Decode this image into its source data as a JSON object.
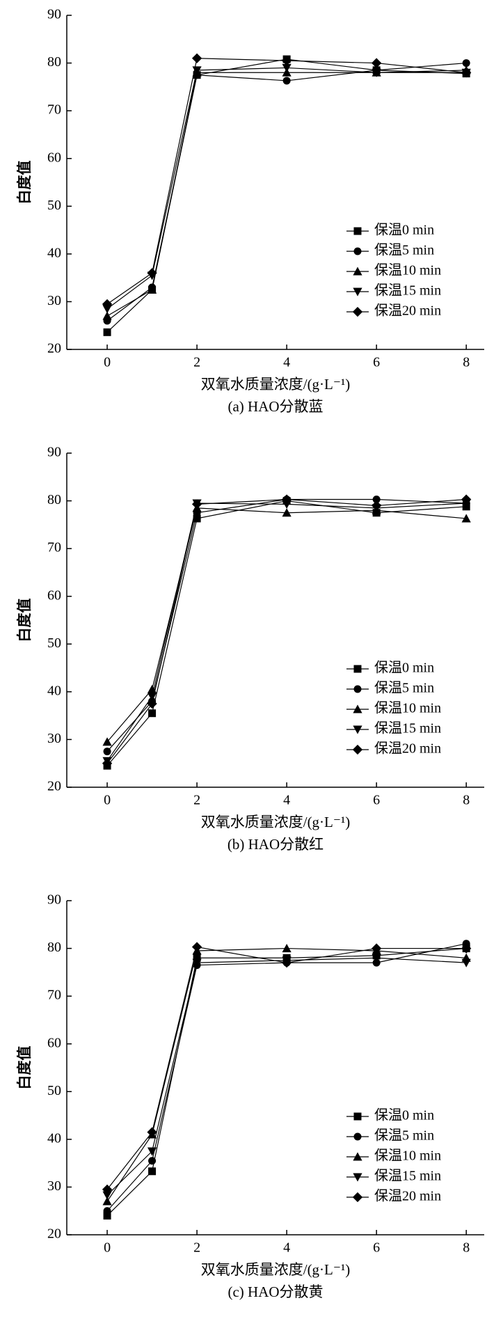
{
  "chart_data": [
    {
      "type": "line",
      "title": "(a) HAO分散蓝",
      "x_label": "双氧水质量浓度/(g·L⁻¹)",
      "y_label": "白度值",
      "x": [
        0,
        1,
        2,
        4,
        6,
        8
      ],
      "xlim": [
        -0.9,
        8.4
      ],
      "xticks": [
        0,
        2,
        4,
        6,
        8
      ],
      "ylim": [
        20,
        90
      ],
      "yticks": [
        20,
        30,
        40,
        50,
        60,
        70,
        80,
        90
      ],
      "legend": "lower right",
      "series": [
        {
          "name": "保温0 min",
          "color": "#000000",
          "marker": "square",
          "values": [
            23.6,
            32.5,
            77.5,
            80.8,
            78.5,
            77.8
          ]
        },
        {
          "name": "保温5 min",
          "color": "#000000",
          "marker": "circle",
          "values": [
            26,
            33,
            77.5,
            76.3,
            78.5,
            80
          ]
        },
        {
          "name": "保温10 min",
          "color": "#000000",
          "marker": "triangle-up",
          "values": [
            27,
            32.5,
            78,
            78,
            78,
            78.5
          ]
        },
        {
          "name": "保温15 min",
          "color": "#000000",
          "marker": "triangle-down",
          "values": [
            28.5,
            35.5,
            78.5,
            79,
            78,
            78
          ]
        },
        {
          "name": "保温20 min",
          "color": "#000000",
          "marker": "diamond",
          "values": [
            29.5,
            36,
            81,
            80.5,
            80,
            78
          ]
        }
      ]
    },
    {
      "type": "line",
      "title": "(b) HAO分散红",
      "x_label": "双氧水质量浓度/(g·L⁻¹)",
      "y_label": "白度值",
      "x": [
        0,
        1,
        2,
        4,
        6,
        8
      ],
      "xlim": [
        -0.9,
        8.4
      ],
      "xticks": [
        0,
        2,
        4,
        6,
        8
      ],
      "ylim": [
        20,
        90
      ],
      "yticks": [
        20,
        30,
        40,
        50,
        60,
        70,
        80,
        90
      ],
      "legend": "lower right",
      "series": [
        {
          "name": "保温0 min",
          "color": "#000000",
          "marker": "square",
          "values": [
            24.5,
            35.5,
            76.3,
            80,
            77.5,
            78.8
          ]
        },
        {
          "name": "保温5 min",
          "color": "#000000",
          "marker": "circle",
          "values": [
            27.5,
            38,
            77.5,
            80.3,
            80.3,
            79.5
          ]
        },
        {
          "name": "保温10 min",
          "color": "#000000",
          "marker": "triangle-up",
          "values": [
            29.5,
            40.5,
            78.5,
            77.5,
            78,
            76.3
          ]
        },
        {
          "name": "保温15 min",
          "color": "#000000",
          "marker": "triangle-down",
          "values": [
            25.5,
            39,
            79.5,
            79.3,
            78.5,
            79.5
          ]
        },
        {
          "name": "保温20 min",
          "color": "#000000",
          "marker": "diamond",
          "values": [
            25,
            37.5,
            79.3,
            80.3,
            79,
            80.3
          ]
        }
      ]
    },
    {
      "type": "line",
      "title": "(c) HAO分散黄",
      "x_label": "双氧水质量浓度/(g·L⁻¹)",
      "y_label": "白度值",
      "x": [
        0,
        1,
        2,
        4,
        6,
        8
      ],
      "xlim": [
        -0.9,
        8.4
      ],
      "xticks": [
        0,
        2,
        4,
        6,
        8
      ],
      "ylim": [
        20,
        90
      ],
      "yticks": [
        20,
        30,
        40,
        50,
        60,
        70,
        80,
        90
      ],
      "legend": "lower right",
      "series": [
        {
          "name": "保温0 min",
          "color": "#000000",
          "marker": "square",
          "values": [
            24,
            33.3,
            78,
            78,
            78.5,
            80
          ]
        },
        {
          "name": "保温5 min",
          "color": "#000000",
          "marker": "circle",
          "values": [
            25,
            35.5,
            76.5,
            77,
            77,
            81
          ]
        },
        {
          "name": "保温10 min",
          "color": "#000000",
          "marker": "triangle-up",
          "values": [
            27,
            41,
            79.5,
            80,
            79.5,
            78
          ]
        },
        {
          "name": "保温15 min",
          "color": "#000000",
          "marker": "triangle-down",
          "values": [
            28.3,
            37.5,
            77,
            77.5,
            78,
            77
          ]
        },
        {
          "name": "保温20 min",
          "color": "#000000",
          "marker": "diamond",
          "values": [
            29.5,
            41.5,
            80.3,
            77,
            80,
            80
          ]
        }
      ]
    }
  ]
}
